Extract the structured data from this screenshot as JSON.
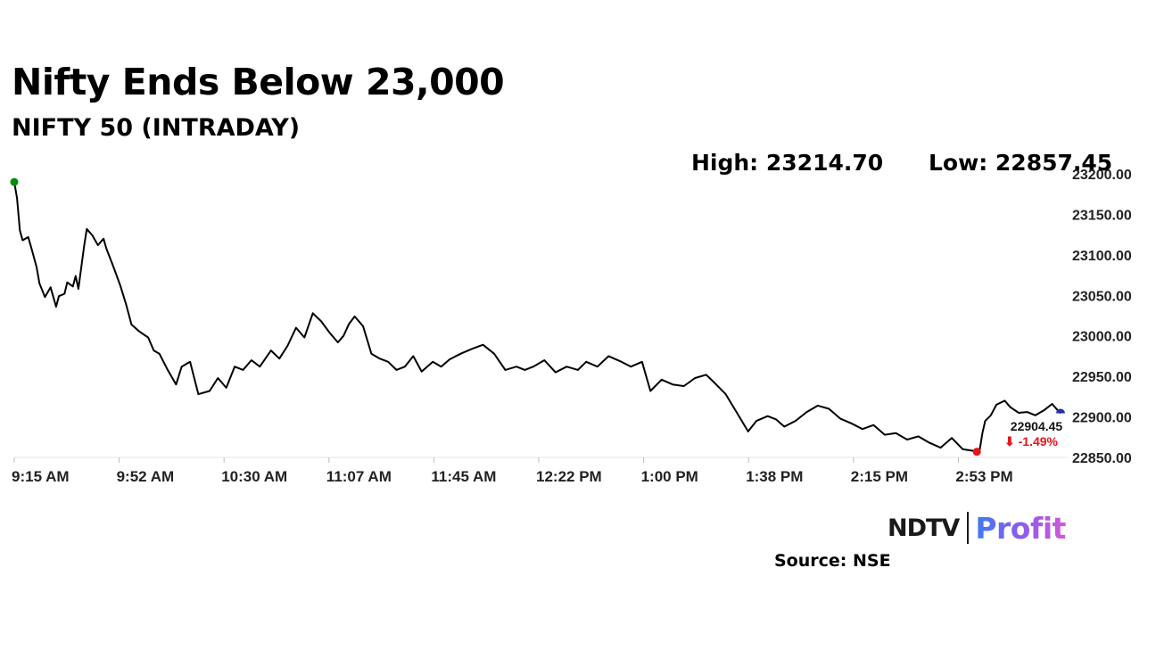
{
  "title": "Nifty Ends Below 23,000",
  "subtitle": "NIFTY 50 (INTRADAY)",
  "stats": {
    "high_label": "High: 23214.70",
    "low_label": "Low: 22857.45"
  },
  "source": "Source: NSE",
  "logo": {
    "left": "NDTV",
    "right": "Profit"
  },
  "colors": {
    "line": "#000000",
    "start_marker": "#0a8a0a",
    "low_marker": "#e8141a",
    "last_marker": "#1f2fb3",
    "change": "#e8141a",
    "grid": "#e6e6e6"
  },
  "chart_data": {
    "type": "line",
    "x_ticks": [
      "9:15 AM",
      "9:52 AM",
      "10:30 AM",
      "11:07 AM",
      "11:45 AM",
      "12:22 PM",
      "1:00 PM",
      "1:38 PM",
      "2:15 PM",
      "2:53 PM"
    ],
    "y_ticks": [
      "22850.00",
      "22900.00",
      "22950.00",
      "23000.00",
      "23050.00",
      "23100.00",
      "23150.00",
      "23200.00"
    ],
    "ylim": [
      22850,
      23200
    ],
    "x_range": [
      0,
      375
    ],
    "y_axis_position": "right",
    "grid": false,
    "series": [
      {
        "x": [
          0,
          1,
          2,
          3,
          5,
          6,
          8,
          9,
          11,
          13,
          15,
          16,
          18,
          19,
          21,
          22,
          23,
          25,
          26,
          28,
          30,
          32,
          33,
          35,
          36,
          38,
          40,
          42,
          45,
          48,
          50,
          52,
          55,
          58,
          60,
          63,
          66,
          70,
          73,
          76,
          79,
          82,
          85,
          88,
          92,
          95,
          98,
          101,
          104,
          107,
          110,
          113,
          116,
          118,
          120,
          122,
          125,
          128,
          131,
          134,
          137,
          140,
          143,
          146,
          150,
          153,
          156,
          160,
          164,
          168,
          172,
          176,
          180,
          183,
          186,
          190,
          194,
          198,
          202,
          205,
          209,
          213,
          217,
          221,
          225,
          228,
          232,
          236,
          240,
          244,
          248,
          251,
          255,
          259,
          263,
          266,
          270,
          273,
          276,
          280,
          284,
          288,
          292,
          296,
          300,
          304,
          308,
          312,
          316,
          320,
          324,
          328,
          332,
          336,
          340,
          344,
          345,
          346,
          347,
          348,
          350,
          352,
          355,
          357,
          360,
          363,
          366,
          369,
          372,
          374,
          375
        ],
        "y": [
          23190,
          23170,
          23130,
          23118,
          23122,
          23110,
          23085,
          23065,
          23048,
          23060,
          23036,
          23049,
          23052,
          23066,
          23061,
          23074,
          23058,
          23110,
          23132,
          23124,
          23112,
          23120,
          23108,
          23090,
          23081,
          23062,
          23040,
          23014,
          23005,
          22998,
          22982,
          22978,
          22958,
          22940,
          22962,
          22968,
          22928,
          22932,
          22948,
          22936,
          22962,
          22958,
          22970,
          22962,
          22982,
          22972,
          22988,
          23010,
          22998,
          23028,
          23018,
          23004,
          22992,
          23000,
          23015,
          23024,
          23012,
          22978,
          22972,
          22968,
          22958,
          22962,
          22975,
          22956,
          22968,
          22962,
          22971,
          22978,
          22984,
          22989,
          22978,
          22958,
          22962,
          22958,
          22962,
          22970,
          22955,
          22962,
          22958,
          22968,
          22962,
          22975,
          22969,
          22962,
          22968,
          22932,
          22946,
          22940,
          22938,
          22948,
          22952,
          22942,
          22928,
          22905,
          22882,
          22895,
          22901,
          22897,
          22888,
          22895,
          22906,
          22914,
          22910,
          22898,
          22892,
          22885,
          22890,
          22878,
          22880,
          22872,
          22876,
          22868,
          22862,
          22874,
          22860,
          22858,
          22857,
          22859,
          22880,
          22895,
          22902,
          22915,
          22920,
          22912,
          22905,
          22906,
          22902,
          22908,
          22916,
          22908,
          22904.45
        ]
      }
    ],
    "markers": {
      "last_value_label": "22904.45",
      "change_label": "⬇ -1.49%"
    }
  }
}
